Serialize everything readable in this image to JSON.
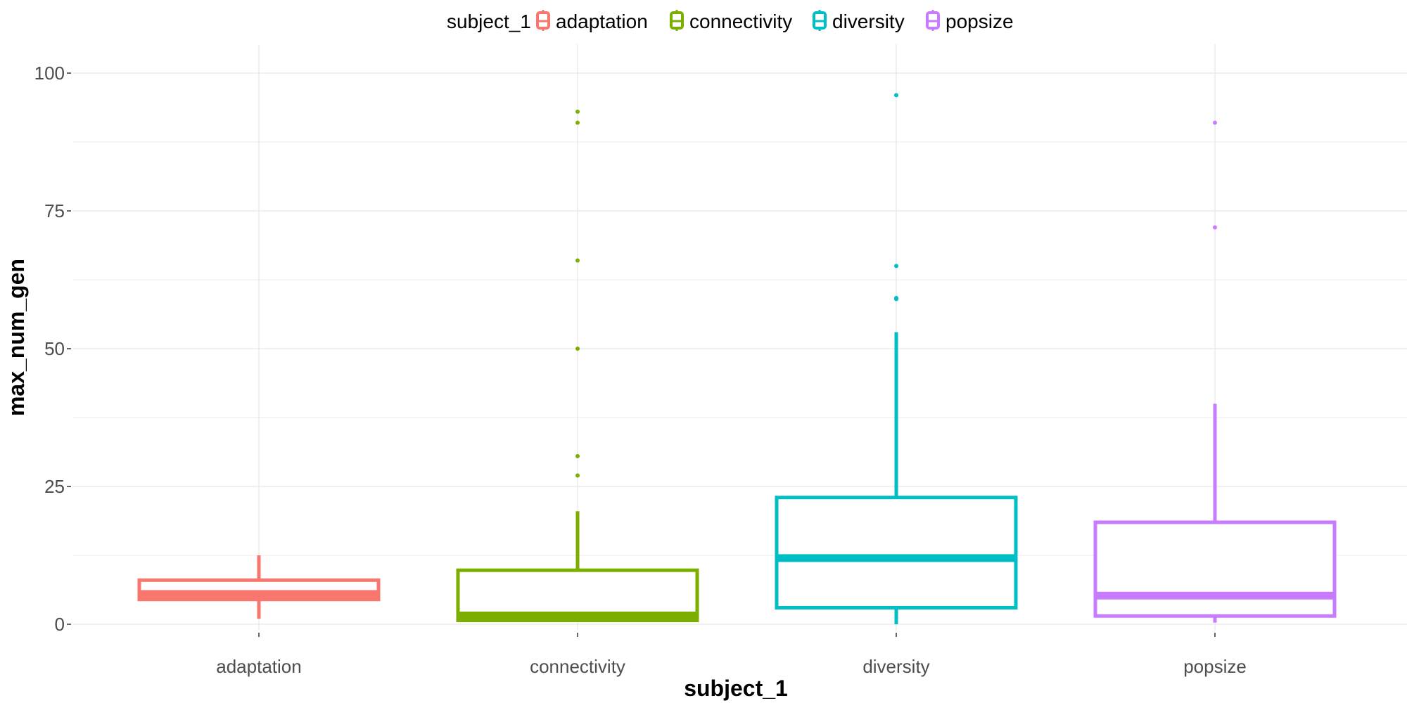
{
  "chart_data": {
    "type": "box",
    "xlabel": "subject_1",
    "ylabel": "max_num_gen",
    "ylim": [
      -3,
      104
    ],
    "y_ticks": [
      0,
      25,
      50,
      75,
      100
    ],
    "grid": true,
    "legend": {
      "title": "subject_1",
      "position": "top",
      "entries": [
        "adaptation",
        "connectivity",
        "diversity",
        "popsize"
      ]
    },
    "categories": [
      "adaptation",
      "connectivity",
      "diversity",
      "popsize"
    ],
    "series": [
      {
        "name": "adaptation",
        "color": "#F8766D",
        "whisker_low": 1,
        "q1": 4.5,
        "median": 5.5,
        "q3": 8,
        "whisker_high": 12.5,
        "outliers": []
      },
      {
        "name": "connectivity",
        "color": "#7CAE00",
        "whisker_low": 0.5,
        "q1": 0.7,
        "median": 1.6,
        "q3": 9.8,
        "whisker_high": 20.5,
        "outliers": [
          27,
          30.5,
          50,
          66,
          91,
          93
        ]
      },
      {
        "name": "diversity",
        "color": "#00BFC4",
        "whisker_low": 0,
        "q1": 3,
        "median": 12,
        "q3": 23,
        "whisker_high": 53,
        "outliers": [
          59,
          59.2,
          65,
          96
        ]
      },
      {
        "name": "popsize",
        "color": "#C77CFF",
        "whisker_low": 0.3,
        "q1": 1.5,
        "median": 5.2,
        "q3": 18.5,
        "whisker_high": 40,
        "outliers": [
          72,
          91
        ]
      }
    ]
  }
}
